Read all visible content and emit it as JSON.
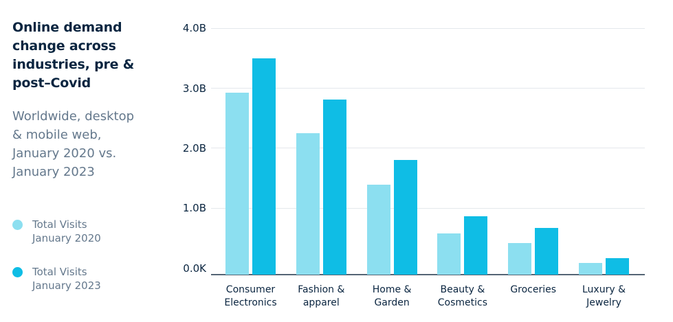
{
  "panel": {
    "title": "Online demand\nchange across\nindustries, pre &\npost–Covid",
    "subtitle": "Worldwide, desktop\n& mobile web,\nJanuary 2020 vs.\nJanuary 2023",
    "legend": [
      {
        "label": "Total Visits\nJanuary 2020",
        "color": "#8CDFF0"
      },
      {
        "label": "Total Visits\nJanuary 2023",
        "color": "#0FBDE5"
      }
    ]
  },
  "chart_data": {
    "type": "bar",
    "title": "Online demand change across industries, pre & post–Covid",
    "subtitle": "Worldwide, desktop & mobile web, January 2020 vs. January 2023",
    "unit": "total visits (billions)",
    "categories": [
      "Consumer Electronics",
      "Fashion & apparel",
      "Home & Garden",
      "Beauty & Cosmetics",
      "Groceries",
      "Luxury & Jewelry"
    ],
    "category_labels": [
      "Consumer\nElectronics",
      "Fashion &\napparel",
      "Home &\nGarden",
      "Beauty &\nCosmetics",
      "Groceries",
      "Luxury &\nJewelry"
    ],
    "series": [
      {
        "name": "Total Visits January 2020",
        "color": "#8CDFF0",
        "values": [
          2.92,
          2.25,
          1.39,
          0.58,
          0.42,
          0.09
        ]
      },
      {
        "name": "Total Visits January 2023",
        "color": "#0FBDE5",
        "values": [
          3.5,
          2.81,
          1.8,
          0.86,
          0.67,
          0.17
        ]
      }
    ],
    "y_ticks": [
      "4.0B",
      "3.0B",
      "2.0B",
      "1.0B",
      "0.0K"
    ],
    "ylim": [
      0,
      4.0
    ],
    "grid": true,
    "legend_position": "left"
  },
  "colors": {
    "title_text": "#0A2540",
    "body_text": "#64788C",
    "axis_text": "#0A2540",
    "gridline": "#E4E8EC",
    "axis_line": "#546575",
    "background": "#FFFFFF"
  }
}
